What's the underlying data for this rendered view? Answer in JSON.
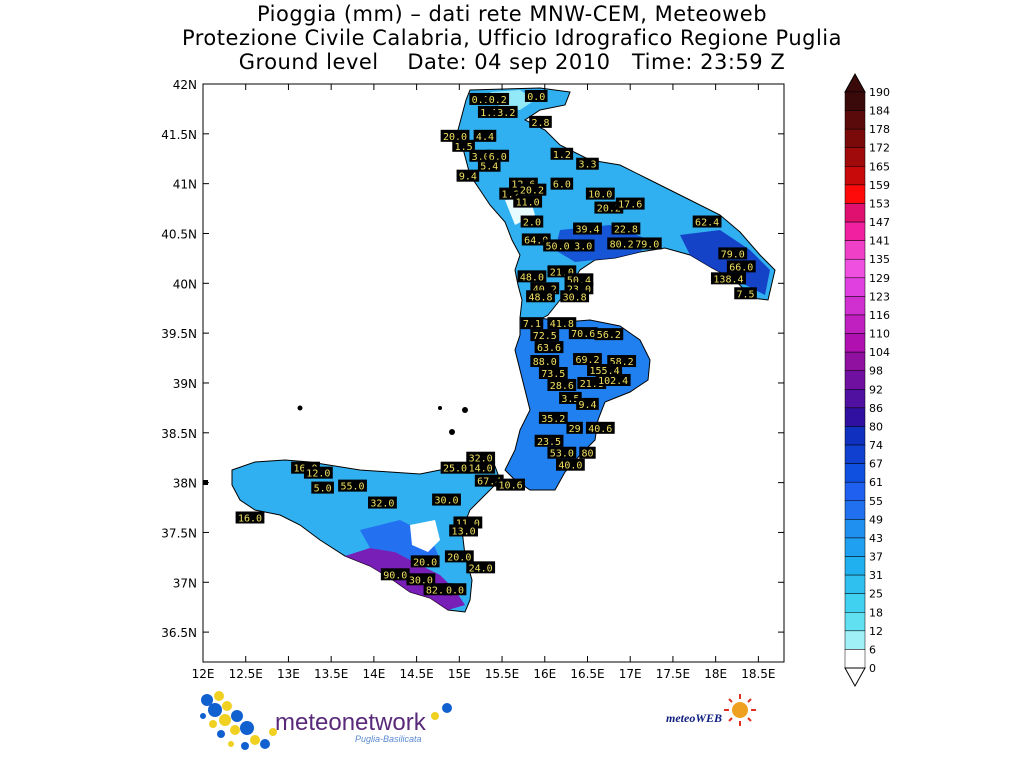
{
  "title": {
    "line1": "Pioggia (mm) – dati rete MNW-CEM, Meteoweb",
    "line2": "Protezione Civile Calabria, Ufficio Idrografico Regione Puglia",
    "line3": "Ground level    Date: 04 sep 2010   Time: 23:59 Z"
  },
  "map": {
    "lat_ticks": [
      "42N",
      "41.5N",
      "41N",
      "40.5N",
      "40N",
      "39.5N",
      "39N",
      "38.5N",
      "38N",
      "37.5N",
      "37N",
      "36.5N"
    ],
    "lon_ticks": [
      "12E",
      "12.5E",
      "13E",
      "13.5E",
      "14E",
      "14.5E",
      "15E",
      "15.5E",
      "16E",
      "16.5E",
      "17E",
      "17.5E",
      "18E",
      "18.5E"
    ],
    "lat_range": [
      36.2,
      42.0
    ],
    "lon_range": [
      12.0,
      18.8
    ]
  },
  "colorbar": {
    "labels": [
      "190",
      "184",
      "178",
      "172",
      "165",
      "159",
      "153",
      "147",
      "141",
      "135",
      "129",
      "123",
      "116",
      "110",
      "104",
      "98",
      "92",
      "86",
      "80",
      "74",
      "67",
      "61",
      "55",
      "49",
      "43",
      "37",
      "31",
      "25",
      "18",
      "12",
      "6",
      "0"
    ],
    "colors": [
      "#3a0a0a",
      "#5a0a0a",
      "#7a0a0a",
      "#a00a0a",
      "#c80a0a",
      "#ff0a0a",
      "#e01070",
      "#f020a0",
      "#f040c8",
      "#f050e0",
      "#e040e0",
      "#d030d0",
      "#c020c0",
      "#b010b0",
      "#9010a0",
      "#7010a0",
      "#5010a0",
      "#3010a0",
      "#1030c0",
      "#1040d0",
      "#1050e0",
      "#2060f0",
      "#2070f0",
      "#2090f0",
      "#20a0f0",
      "#20b0f0",
      "#30c0f0",
      "#40d0f0",
      "#60e0f0",
      "#a0f0f8",
      "#ffffff"
    ]
  },
  "stations": [
    {
      "v": "0.1",
      "lon": 15.25,
      "lat": 41.85
    },
    {
      "v": "0.2",
      "lon": 15.45,
      "lat": 41.85
    },
    {
      "v": "0.0",
      "lon": 15.9,
      "lat": 41.88
    },
    {
      "v": "1.1",
      "lon": 15.35,
      "lat": 41.72
    },
    {
      "v": "3.2",
      "lon": 15.55,
      "lat": 41.72
    },
    {
      "v": "2.8",
      "lon": 15.95,
      "lat": 41.62
    },
    {
      "v": "20.0",
      "lon": 14.95,
      "lat": 41.48
    },
    {
      "v": "4.4",
      "lon": 15.3,
      "lat": 41.48
    },
    {
      "v": "1.5",
      "lon": 15.05,
      "lat": 41.38
    },
    {
      "v": "3.0",
      "lon": 15.25,
      "lat": 41.28
    },
    {
      "v": "6.0",
      "lon": 15.45,
      "lat": 41.28
    },
    {
      "v": "5.4",
      "lon": 15.35,
      "lat": 41.18
    },
    {
      "v": "1.2",
      "lon": 16.2,
      "lat": 41.3
    },
    {
      "v": "3.3",
      "lon": 16.5,
      "lat": 41.2
    },
    {
      "v": "9.4",
      "lon": 15.1,
      "lat": 41.08
    },
    {
      "v": "12.6",
      "lon": 15.75,
      "lat": 41.0
    },
    {
      "v": "6.0",
      "lon": 16.2,
      "lat": 41.0
    },
    {
      "v": "1.2",
      "lon": 15.6,
      "lat": 40.9
    },
    {
      "v": "20.2",
      "lon": 15.85,
      "lat": 40.94
    },
    {
      "v": "11.0",
      "lon": 15.8,
      "lat": 40.82
    },
    {
      "v": "10.0",
      "lon": 16.65,
      "lat": 40.9
    },
    {
      "v": "20.2",
      "lon": 16.75,
      "lat": 40.76
    },
    {
      "v": "17.6",
      "lon": 17.0,
      "lat": 40.8
    },
    {
      "v": "2.0",
      "lon": 15.85,
      "lat": 40.62
    },
    {
      "v": "39.4",
      "lon": 16.5,
      "lat": 40.55
    },
    {
      "v": "22.8",
      "lon": 16.95,
      "lat": 40.55
    },
    {
      "v": "64.0",
      "lon": 15.9,
      "lat": 40.44
    },
    {
      "v": "50.0",
      "lon": 16.15,
      "lat": 40.38
    },
    {
      "v": "3.0",
      "lon": 16.45,
      "lat": 40.38
    },
    {
      "v": "80.2",
      "lon": 16.9,
      "lat": 40.4
    },
    {
      "v": "79.0",
      "lon": 17.2,
      "lat": 40.4
    },
    {
      "v": "62.4",
      "lon": 17.9,
      "lat": 40.62
    },
    {
      "v": "79.0",
      "lon": 18.2,
      "lat": 40.3
    },
    {
      "v": "21.0",
      "lon": 16.2,
      "lat": 40.12
    },
    {
      "v": "50.4",
      "lon": 16.4,
      "lat": 40.04
    },
    {
      "v": "48.0",
      "lon": 15.85,
      "lat": 40.07
    },
    {
      "v": "40.2",
      "lon": 16.0,
      "lat": 39.95
    },
    {
      "v": "23.0",
      "lon": 16.4,
      "lat": 39.95
    },
    {
      "v": "48.8",
      "lon": 15.95,
      "lat": 39.87
    },
    {
      "v": "30.8",
      "lon": 16.35,
      "lat": 39.87
    },
    {
      "v": "66.0",
      "lon": 18.3,
      "lat": 40.17
    },
    {
      "v": "138.4",
      "lon": 18.15,
      "lat": 40.05
    },
    {
      "v": "7.5",
      "lon": 18.35,
      "lat": 39.9
    },
    {
      "v": "7.1",
      "lon": 15.85,
      "lat": 39.6
    },
    {
      "v": "41.8",
      "lon": 16.2,
      "lat": 39.6
    },
    {
      "v": "72.5",
      "lon": 16.0,
      "lat": 39.48
    },
    {
      "v": "70.6",
      "lon": 16.45,
      "lat": 39.5
    },
    {
      "v": "56.2",
      "lon": 16.75,
      "lat": 39.49
    },
    {
      "v": "63.6",
      "lon": 16.05,
      "lat": 39.36
    },
    {
      "v": "88.0",
      "lon": 16.0,
      "lat": 39.22
    },
    {
      "v": "69.2",
      "lon": 16.5,
      "lat": 39.24
    },
    {
      "v": "58.2",
      "lon": 16.9,
      "lat": 39.22
    },
    {
      "v": "73.5",
      "lon": 16.1,
      "lat": 39.1
    },
    {
      "v": "155.4",
      "lon": 16.7,
      "lat": 39.13
    },
    {
      "v": "28.6",
      "lon": 16.2,
      "lat": 38.98
    },
    {
      "v": "21.8",
      "lon": 16.55,
      "lat": 39.0
    },
    {
      "v": "102.4",
      "lon": 16.8,
      "lat": 39.03
    },
    {
      "v": "3.5",
      "lon": 16.3,
      "lat": 38.85
    },
    {
      "v": "9.4",
      "lon": 16.5,
      "lat": 38.79
    },
    {
      "v": "35.2",
      "lon": 16.1,
      "lat": 38.65
    },
    {
      "v": "29",
      "lon": 16.35,
      "lat": 38.55
    },
    {
      "v": "40.6",
      "lon": 16.65,
      "lat": 38.55
    },
    {
      "v": "23.5",
      "lon": 16.05,
      "lat": 38.42
    },
    {
      "v": "53.0",
      "lon": 16.2,
      "lat": 38.3
    },
    {
      "v": "80",
      "lon": 16.5,
      "lat": 38.3
    },
    {
      "v": "32.0",
      "lon": 15.25,
      "lat": 38.25
    },
    {
      "v": "40.0",
      "lon": 16.3,
      "lat": 38.18
    },
    {
      "v": "14.0",
      "lon": 15.25,
      "lat": 38.15
    },
    {
      "v": "25.0",
      "lon": 14.95,
      "lat": 38.15
    },
    {
      "v": "67.4",
      "lon": 15.35,
      "lat": 38.02
    },
    {
      "v": "10.6",
      "lon": 15.6,
      "lat": 37.98
    },
    {
      "v": "16.0",
      "lon": 13.2,
      "lat": 38.15
    },
    {
      "v": "12.0",
      "lon": 13.35,
      "lat": 38.1
    },
    {
      "v": "5.0",
      "lon": 13.4,
      "lat": 37.95
    },
    {
      "v": "55.0",
      "lon": 13.75,
      "lat": 37.97
    },
    {
      "v": "16.0",
      "lon": 12.55,
      "lat": 37.65
    },
    {
      "v": "32.0",
      "lon": 14.1,
      "lat": 37.8
    },
    {
      "v": "30.0",
      "lon": 14.85,
      "lat": 37.83
    },
    {
      "v": "11.0",
      "lon": 15.1,
      "lat": 37.6
    },
    {
      "v": "13.0",
      "lon": 15.05,
      "lat": 37.52
    },
    {
      "v": "20.0",
      "lon": 14.6,
      "lat": 37.21
    },
    {
      "v": "20.0",
      "lon": 15.0,
      "lat": 37.26
    },
    {
      "v": "24.0",
      "lon": 15.25,
      "lat": 37.15
    },
    {
      "v": "90.0",
      "lon": 14.25,
      "lat": 37.08
    },
    {
      "v": "30.0",
      "lon": 14.55,
      "lat": 37.03
    },
    {
      "v": "82.0",
      "lon": 14.75,
      "lat": 36.93
    },
    {
      "v": "0.0",
      "lon": 14.95,
      "lat": 36.93
    }
  ],
  "logos": {
    "meteonetwork": "meteonetwork",
    "meteonetwork_sub": "Puglia-Basilicata",
    "meteoweb": "meteoWEB"
  }
}
